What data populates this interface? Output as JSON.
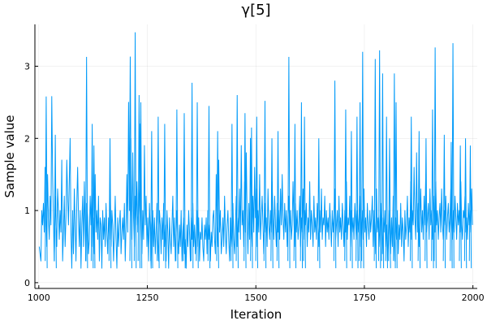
{
  "chart_data": {
    "type": "line",
    "title": "γ[5]",
    "xlabel": "Iteration",
    "ylabel": "Sample value",
    "xlim": [
      991,
      2010
    ],
    "ylim": [
      -0.08,
      3.58
    ],
    "xticks": [
      1000,
      1250,
      1500,
      1750,
      2000
    ],
    "yticks": [
      0,
      1,
      2,
      3
    ],
    "grid": true,
    "legend": "none",
    "series": [
      {
        "color": "#009af9",
        "x_start": 1001,
        "x_step": 1,
        "values": [
          0.5,
          0.4,
          0.3,
          1.0,
          0.8,
          1.1,
          0.7,
          1.6,
          1.0,
          0.5,
          1.5,
          0.9,
          0.6,
          1.2,
          0.8,
          2.58,
          1.5,
          0.9,
          0.3,
          1.2,
          0.8,
          0.5,
          1.3,
          1.0,
          0.6,
          1.0,
          0.7,
          1.7,
          0.3,
          0.7,
          1.2,
          0.5,
          0.9,
          1.7,
          1.2,
          0.8,
          1.4,
          2.0,
          0.7,
          0.2,
          1.0,
          0.4,
          1.3,
          0.8,
          0.3,
          1.1,
          1.6,
          0.9,
          0.5,
          1.0,
          0.2,
          0.8,
          1.2,
          0.5,
          1.4,
          0.7,
          0.3,
          1.1,
          0.9,
          0.4,
          0.6,
          1.2,
          0.8,
          1.3,
          0.5,
          0.9,
          0.4,
          1.5,
          0.7,
          1.0,
          0.6,
          1.2,
          0.3,
          0.9,
          0.8,
          0.2,
          1.0,
          0.6,
          0.9,
          0.5,
          1.1,
          0.7,
          0.4,
          0.9,
          0.6,
          1.3,
          0.5,
          1.0,
          0.8,
          0.3,
          0.7,
          1.2,
          0.6,
          0.2,
          0.9,
          0.5,
          0.8,
          1.0,
          0.4,
          0.7,
          0.9,
          0.6,
          1.1,
          0.3,
          0.8,
          1.5,
          0.7,
          2.5,
          1.0,
          3.13,
          1.2,
          0.6,
          1.8,
          0.9,
          0.5,
          1.2,
          0.8,
          1.4,
          0.7,
          1.0,
          1.3,
          2.2,
          0.9,
          0.4,
          1.0,
          0.6,
          1.9,
          0.8,
          1.2,
          0.5,
          0.9,
          0.3,
          1.1,
          0.7,
          0.2,
          0.8,
          1.0,
          0.5,
          0.9,
          0.4,
          0.7,
          1.1,
          0.6,
          0.3,
          1.0,
          0.8,
          0.4,
          0.9,
          0.6,
          1.1,
          0.5,
          0.8,
          0.3,
          1.0,
          0.7,
          0.2,
          0.9,
          0.6,
          0.4,
          0.8,
          1.2,
          0.5,
          0.9,
          0.3,
          0.7,
          1.0,
          0.6,
          0.4,
          0.8,
          0.5,
          1.0,
          0.3,
          0.7,
          0.9,
          0.4,
          0.6,
          0.2,
          0.8,
          0.5,
          1.0,
          0.7,
          0.3,
          0.9,
          0.6,
          1.1,
          0.5,
          0.8,
          0.4,
          0.7,
          1.0,
          0.5,
          0.9,
          0.3,
          0.7,
          0.6,
          0.9,
          0.5,
          0.3,
          0.8,
          0.6,
          0.9,
          0.4,
          1.0,
          0.6,
          0.8,
          0.3,
          0.7,
          0.5,
          0.9,
          1.0,
          0.6,
          0.4,
          1.5,
          0.8,
          0.5,
          1.7,
          0.7,
          1.0,
          0.4,
          0.6,
          0.9,
          0.5,
          1.2,
          0.7,
          0.4,
          0.8,
          1.0,
          0.6,
          0.3,
          0.9,
          0.5,
          0.7,
          1.1,
          0.6,
          0.4,
          0.8,
          1.2,
          0.5,
          0.9,
          0.7,
          1.3,
          0.6,
          1.9,
          0.8,
          1.0,
          0.5,
          1.4,
          0.7,
          1.8,
          0.9,
          0.4,
          1.1,
          0.6,
          2.0,
          0.8,
          0.5,
          1.2,
          0.7,
          1.6,
          0.9,
          1.3,
          0.5,
          1.0,
          0.7,
          1.5,
          0.6,
          0.9,
          1.2,
          0.8,
          0.4,
          1.1,
          0.7,
          0.9,
          0.5,
          1.3,
          0.8,
          0.6,
          1.0,
          0.7,
          1.4,
          0.9,
          0.6,
          1.2,
          0.8,
          0.5,
          1.1,
          0.7,
          1.0,
          0.6,
          1.3,
          0.8,
          1.5,
          0.9,
          0.6,
          1.1,
          0.7,
          1.0,
          0.5,
          0.9,
          1.2,
          0.7,
          1.0,
          0.6,
          0.8,
          1.4,
          0.9,
          0.5,
          1.1,
          0.7,
          1.0,
          0.6,
          0.8,
          1.2,
          0.5,
          0.9,
          0.7,
          1.3,
          0.6,
          1.0,
          0.8,
          1.1,
          0.5,
          0.9,
          0.7,
          1.4,
          0.6,
          1.0,
          0.8,
          0.5,
          1.2,
          0.7,
          0.9,
          0.6,
          1.1,
          0.8,
          0.5,
          1.0,
          0.7,
          1.3,
          0.6,
          0.9,
          0.8,
          1.2,
          0.5,
          1.0,
          0.7,
          0.9,
          0.6,
          1.1,
          0.8,
          0.5,
          1.0,
          0.7,
          0.9,
          1.3,
          0.6,
          0.8,
          1.0,
          0.5,
          1.2,
          0.7,
          0.9,
          0.6,
          1.1,
          0.8,
          0.5,
          1.0,
          0.7,
          1.4,
          0.6,
          0.9,
          0.8,
          1.2,
          0.5,
          1.0,
          0.7,
          0.9,
          0.6,
          1.1,
          0.8,
          0.6,
          1.0,
          0.7,
          0.9,
          1.2,
          0.5,
          0.8,
          1.0,
          0.6,
          1.3,
          0.7,
          0.9,
          0.5,
          1.1,
          0.8,
          0.6,
          1.0,
          0.7,
          0.9,
          1.2,
          0.5,
          1.0,
          0.8,
          0.4,
          1.3,
          0.7,
          0.9,
          0.5,
          0.8,
          1.1,
          0.6,
          0.4,
          0.9,
          0.7,
          1.0,
          0.5,
          0.8,
          0.3,
          0.6,
          1.0,
          0.7,
          0.4,
          0.9,
          0.5,
          1.2,
          0.7,
          0.3,
          0.9,
          0.6,
          1.0,
          0.4,
          0.8,
          0.6,
          1.1,
          0.5,
          0.9,
          0.7,
          0.3,
          1.0,
          0.6,
          0.8,
          1.2,
          0.5,
          0.9,
          0.7,
          1.4,
          0.6,
          1.0,
          0.8,
          1.6,
          0.9,
          0.6,
          1.8,
          0.7,
          1.1,
          0.5,
          0.9,
          1.3,
          0.7,
          1.0,
          0.6,
          1.2,
          0.8,
          1.5,
          0.7,
          0.9,
          1.1,
          0.6,
          1.3,
          0.8,
          1.0,
          0.6,
          0.9,
          1.2,
          0.7,
          1.4,
          0.8,
          1.0,
          0.6,
          0.9,
          1.1,
          0.7,
          1.3,
          0.8,
          0.6,
          1.0,
          0.8,
          1.2,
          0.6,
          0.9,
          1.1,
          0.7,
          0.9,
          1.3,
          0.8,
          0.6,
          1.0,
          0.7,
          1.2,
          0.9,
          0.6,
          1.1,
          0.8,
          1.0,
          0.7,
          1.4,
          0.8,
          0.6,
          1.0,
          0.9,
          1.2,
          0.7,
          0.9,
          0.6,
          1.1,
          0.8,
          1.0,
          0.7,
          1.3,
          0.8
        ]
      }
    ],
    "spikes": [
      [
        1017,
        2.58
      ],
      [
        1038,
        2.05
      ],
      [
        1110,
        3.13
      ],
      [
        1123,
        2.2
      ],
      [
        1127,
        1.9
      ],
      [
        1164,
        2.0
      ],
      [
        1212,
        2.0
      ],
      [
        1222,
        3.47
      ],
      [
        1231,
        2.6
      ],
      [
        1235,
        2.5
      ],
      [
        1260,
        2.1
      ],
      [
        1275,
        2.3
      ],
      [
        1290,
        2.2
      ],
      [
        1318,
        2.4
      ],
      [
        1335,
        2.35
      ],
      [
        1353,
        2.77
      ],
      [
        1365,
        2.5
      ],
      [
        1392,
        2.45
      ],
      [
        1412,
        2.1
      ],
      [
        1445,
        2.2
      ],
      [
        1457,
        2.6
      ],
      [
        1475,
        2.35
      ],
      [
        1490,
        2.15
      ],
      [
        1502,
        2.3
      ],
      [
        1521,
        2.52
      ],
      [
        1537,
        2.0
      ],
      [
        1551,
        2.1
      ],
      [
        1576,
        3.13
      ],
      [
        1590,
        2.2
      ],
      [
        1605,
        2.5
      ],
      [
        1612,
        2.3
      ],
      [
        1645,
        2.0
      ],
      [
        1682,
        2.8
      ],
      [
        1707,
        2.4
      ],
      [
        1720,
        2.1
      ],
      [
        1733,
        2.3
      ],
      [
        1740,
        2.5
      ],
      [
        1746,
        3.2
      ],
      [
        1775,
        3.1
      ],
      [
        1785,
        3.22
      ],
      [
        1792,
        2.9
      ],
      [
        1801,
        2.3
      ],
      [
        1808,
        2.0
      ],
      [
        1819,
        2.9
      ],
      [
        1823,
        2.5
      ],
      [
        1858,
        2.3
      ],
      [
        1876,
        2.1
      ],
      [
        1892,
        2.0
      ],
      [
        1907,
        2.4
      ],
      [
        1913,
        3.26
      ],
      [
        1934,
        2.05
      ],
      [
        1950,
        1.95
      ],
      [
        1954,
        3.32
      ],
      [
        1971,
        1.9
      ],
      [
        1983,
        2.0
      ],
      [
        1994,
        1.9
      ]
    ],
    "spike_color": "#009af9"
  }
}
